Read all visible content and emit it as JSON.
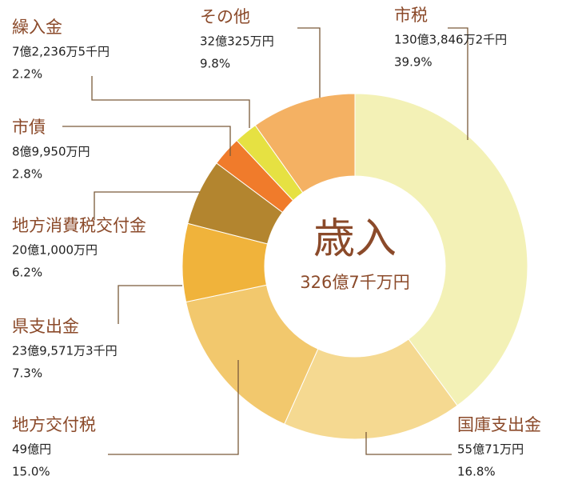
{
  "chart_data": {
    "type": "pie",
    "title": "歳入",
    "subtitle": "326億7千万円",
    "categories": [
      "市税",
      "国庫支出金",
      "地方交付税",
      "県支出金",
      "地方消費税交付金",
      "市債",
      "繰入金",
      "その他"
    ],
    "amounts": [
      "130億3,846万2千円",
      "55億71万円",
      "49億円",
      "23億9,571万3千円",
      "20億1,000万円",
      "8億9,950万円",
      "7億2,236万5千円",
      "32億325万円"
    ],
    "values": [
      39.9,
      16.8,
      15.0,
      7.3,
      6.2,
      2.8,
      2.2,
      9.8
    ],
    "value_labels": [
      "39.9%",
      "16.8%",
      "15.0%",
      "7.3%",
      "6.2%",
      "2.8%",
      "2.2%",
      "9.8%"
    ],
    "colors": [
      "#f3f1b6",
      "#f5d991",
      "#f2c86d",
      "#f0b33b",
      "#b3852f",
      "#f07b2b",
      "#e6e142",
      "#f4b163"
    ]
  }
}
